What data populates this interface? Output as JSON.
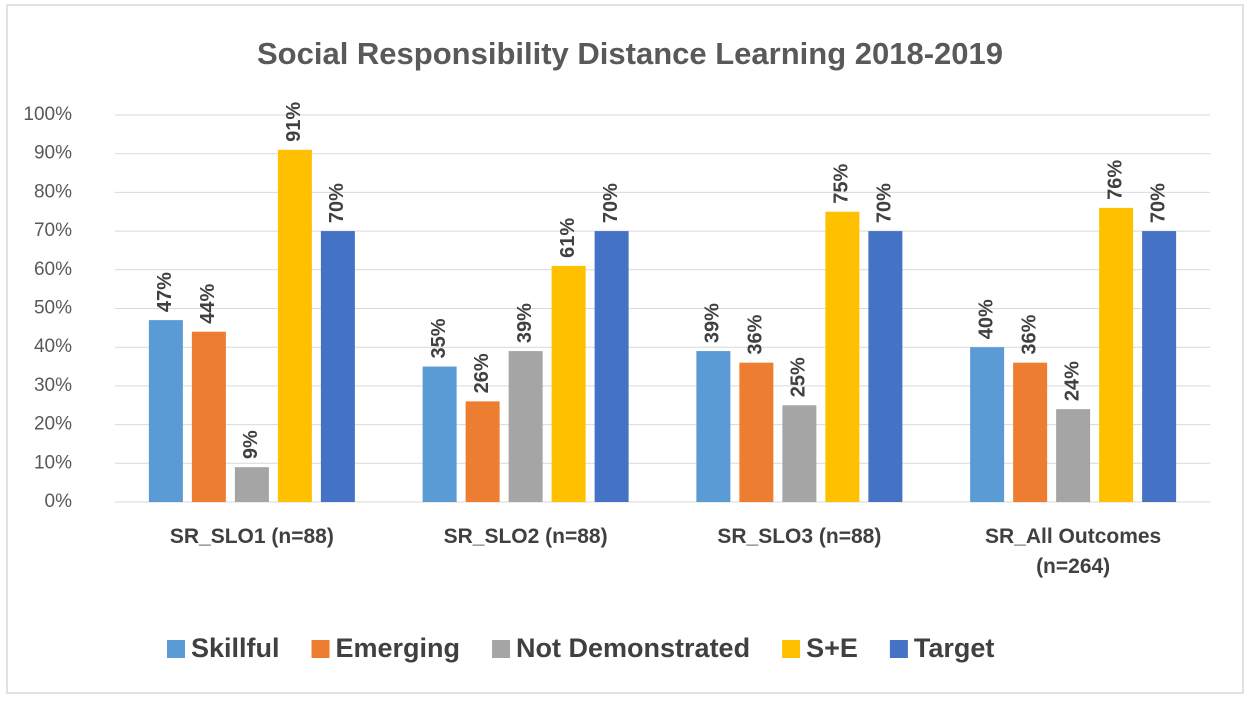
{
  "chart_data": {
    "type": "bar",
    "title": "Social Responsibility Distance Learning 2018-2019",
    "categories": [
      "SR_SLO1 (n=88)",
      "SR_SLO2 (n=88)",
      "SR_SLO3 (n=88)",
      "SR_All Outcomes (n=264)"
    ],
    "series": [
      {
        "name": "Skillful",
        "color": "#5b9bd5",
        "values": [
          47,
          35,
          39,
          40
        ],
        "value_labels": [
          "47%",
          "35%",
          "39%",
          "40%"
        ]
      },
      {
        "name": "Emerging",
        "color": "#ed7d31",
        "values": [
          44,
          26,
          36,
          36
        ],
        "value_labels": [
          "44%",
          "26%",
          "36%",
          "36%"
        ]
      },
      {
        "name": "Not Demonstrated",
        "color": "#a5a5a5",
        "values": [
          9,
          39,
          25,
          24
        ],
        "value_labels": [
          "9%",
          "39%",
          "25%",
          "24%"
        ]
      },
      {
        "name": "S+E",
        "color": "#ffc000",
        "values": [
          91,
          61,
          75,
          76
        ],
        "value_labels": [
          "91%",
          "61%",
          "75%",
          "76%"
        ]
      },
      {
        "name": "Target",
        "color": "#4472c4",
        "values": [
          70,
          70,
          70,
          70
        ],
        "value_labels": [
          "70%",
          "70%",
          "70%",
          "70%"
        ]
      }
    ],
    "ylim": [
      0,
      100
    ],
    "yticks": [
      {
        "value": 0,
        "label": "0%"
      },
      {
        "value": 10,
        "label": "10%"
      },
      {
        "value": 20,
        "label": "20%"
      },
      {
        "value": 30,
        "label": "30%"
      },
      {
        "value": 40,
        "label": "40%"
      },
      {
        "value": 50,
        "label": "50%"
      },
      {
        "value": 60,
        "label": "60%"
      },
      {
        "value": 70,
        "label": "70%"
      },
      {
        "value": 80,
        "label": "80%"
      },
      {
        "value": 90,
        "label": "90%"
      },
      {
        "value": 100,
        "label": "100%"
      }
    ],
    "grid": true,
    "legend": "bottom"
  }
}
